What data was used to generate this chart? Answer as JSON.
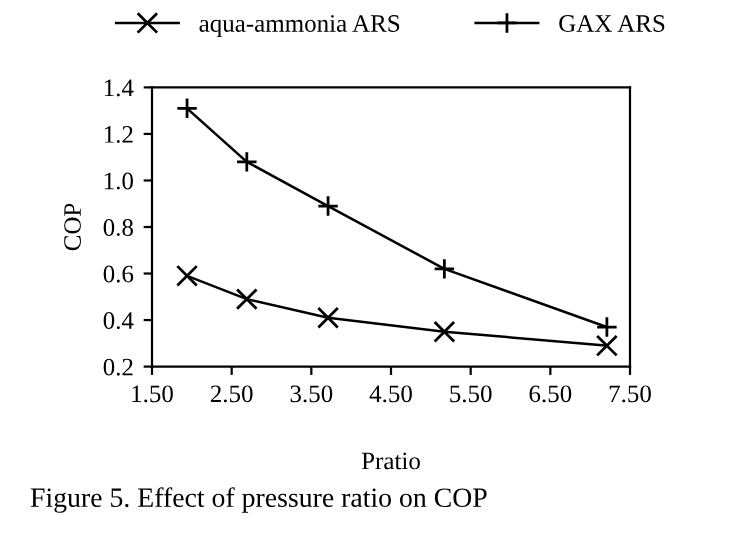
{
  "chart_data": {
    "type": "line",
    "xlabel": "Pratio",
    "ylabel": "COP",
    "series": [
      {
        "name": "aqua-ammonia ARS",
        "color": "#000000",
        "marker": "cross",
        "x": [
          1.94,
          2.69,
          3.71,
          5.17,
          7.21
        ],
        "values": [
          0.59,
          0.49,
          0.41,
          0.35,
          0.29
        ]
      },
      {
        "name": "GAX ARS",
        "color": "#000000",
        "marker": "plus",
        "x": [
          1.94,
          2.69,
          3.71,
          5.17,
          7.21
        ],
        "values": [
          1.31,
          1.08,
          0.89,
          0.62,
          0.37
        ]
      }
    ],
    "xlim": [
      1.5,
      7.5
    ],
    "xticks": [
      {
        "value": 1.5,
        "label": "1.50"
      },
      {
        "value": 2.5,
        "label": "2.50"
      },
      {
        "value": 3.5,
        "label": "3.50"
      },
      {
        "value": 4.5,
        "label": "4.50"
      },
      {
        "value": 5.5,
        "label": "5.50"
      },
      {
        "value": 6.5,
        "label": "6.50"
      },
      {
        "value": 7.5,
        "label": "7.50"
      }
    ],
    "ylim": [
      0.2,
      1.4
    ],
    "yticks": [
      0.2,
      {
        "value": 0.4,
        "label": "0.4"
      },
      {
        "value": 0.6,
        "label": "0.6"
      },
      {
        "value": 0.8,
        "label": "0.8"
      },
      {
        "value": 1.0,
        "label": "1.0"
      },
      {
        "value": 1.2,
        "label": "1.2"
      },
      1.4
    ],
    "grid": false,
    "legend": "top",
    "line_style": "solid",
    "annotations": [
      "Figure 5. Effect of pressure ratio on COP"
    ]
  }
}
